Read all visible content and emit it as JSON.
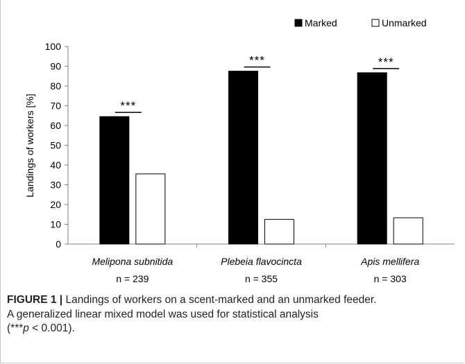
{
  "chart_data": {
    "type": "bar",
    "categories": [
      "Melipona subnitida",
      "Plebeia flavocincta",
      "Apis mellifera"
    ],
    "sample_sizes": [
      "n = 239",
      "n = 355",
      "n = 303"
    ],
    "series": [
      {
        "name": "Marked",
        "values": [
          64.5,
          87.5,
          86.7
        ],
        "color": "#000000"
      },
      {
        "name": "Unmarked",
        "values": [
          35.5,
          12.5,
          13.3
        ],
        "color": "#ffffff"
      }
    ],
    "significance": [
      "***",
      "***",
      "***"
    ],
    "ylabel": "Landings of workers [%]",
    "xlabel": "",
    "ylim": [
      0,
      100
    ],
    "yticks": [
      0,
      10,
      20,
      30,
      40,
      50,
      60,
      70,
      80,
      90,
      100
    ],
    "grid": false,
    "legend_position": "top-right"
  },
  "caption": {
    "label": "FIGURE 1 |",
    "line1": " Landings of workers on a scent-marked and an unmarked feeder.",
    "line2": "A generalized linear mixed model was used for statistical analysis",
    "line3_stars": "(***",
    "line3_p": "p",
    "line3_rest": " < 0.001)."
  }
}
